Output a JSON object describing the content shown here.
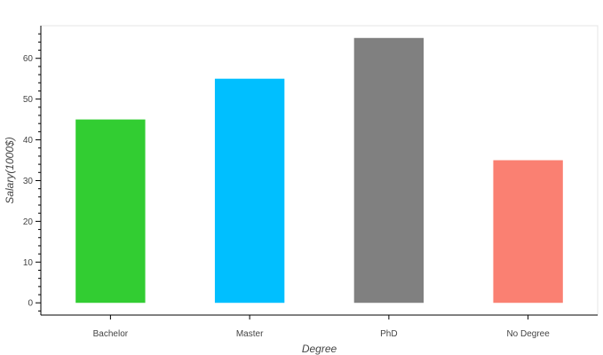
{
  "chart_data": {
    "type": "bar",
    "categories": [
      "Bachelor",
      "Master",
      "PhD",
      "No Degree"
    ],
    "values": [
      45,
      55,
      65,
      35
    ],
    "colors": [
      "#32CD32",
      "#00BFFF",
      "#808080",
      "#FA8072"
    ],
    "xlabel": "Degree",
    "ylabel": "Salary(1000$)",
    "ylim": [
      -3,
      68
    ],
    "yticks": [
      0,
      10,
      20,
      30,
      40,
      50,
      60
    ],
    "grid": false,
    "legend": "none"
  }
}
